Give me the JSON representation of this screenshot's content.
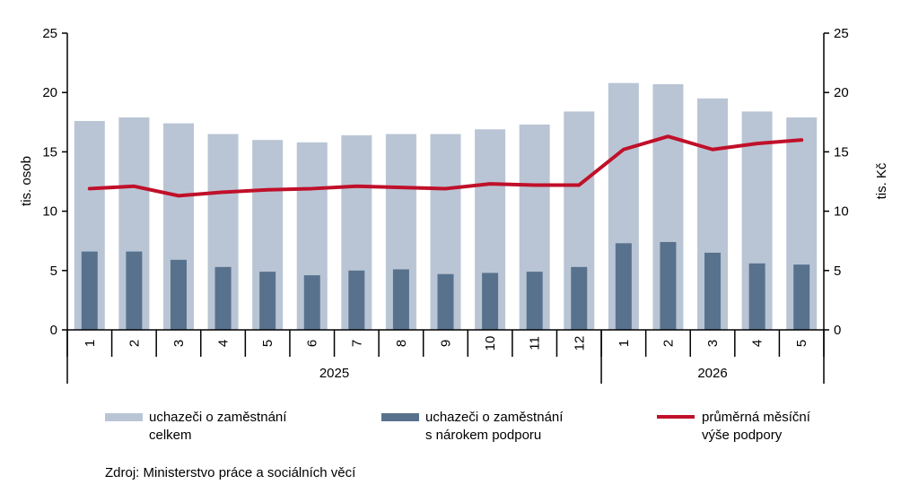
{
  "chart_data": {
    "type": "bar",
    "categories": [
      "1",
      "2",
      "3",
      "4",
      "5",
      "6",
      "7",
      "8",
      "9",
      "10",
      "11",
      "12",
      "1",
      "2",
      "3",
      "4",
      "5"
    ],
    "groups": [
      {
        "label": "2025",
        "count": 12
      },
      {
        "label": "2026",
        "count": 5
      }
    ],
    "series": [
      {
        "name_lines": [
          "uchazeči o zaměstnání",
          "celkem"
        ],
        "type": "bar",
        "axis": "left",
        "color": "#b9c5d4",
        "values": [
          17.6,
          17.9,
          17.4,
          16.5,
          16.0,
          15.8,
          16.4,
          16.5,
          16.5,
          16.9,
          17.3,
          18.4,
          20.8,
          20.7,
          19.5,
          18.4,
          17.9
        ]
      },
      {
        "name_lines": [
          "uchazeči o zaměstnání",
          "s nárokem podporu"
        ],
        "type": "bar",
        "axis": "left",
        "color": "#58728e",
        "values": [
          6.6,
          6.6,
          5.9,
          5.3,
          4.9,
          4.6,
          5.0,
          5.1,
          4.7,
          4.8,
          4.9,
          5.3,
          7.3,
          7.4,
          6.5,
          5.6,
          5.5
        ]
      },
      {
        "name_lines": [
          "průměrná měsíční",
          "výše podpory"
        ],
        "type": "line",
        "axis": "right",
        "color": "#c0102a",
        "values": [
          11.9,
          12.1,
          11.3,
          11.6,
          11.8,
          11.9,
          12.1,
          12.0,
          11.9,
          12.3,
          12.2,
          12.2,
          15.2,
          16.3,
          15.2,
          15.7,
          16.0
        ]
      }
    ],
    "ylabel": "tis. osob",
    "y2label": "tis. Kč",
    "ylim": [
      0,
      25
    ],
    "y2lim": [
      0,
      25
    ],
    "yticks": [
      "0",
      "5",
      "10",
      "15",
      "20",
      "25"
    ],
    "y2ticks": [
      "0",
      "5",
      "10",
      "15",
      "20",
      "25"
    ],
    "grid": false,
    "legend_position": "bottom",
    "source": "Zdroj: Ministerstvo práce a sociálních věcí"
  }
}
